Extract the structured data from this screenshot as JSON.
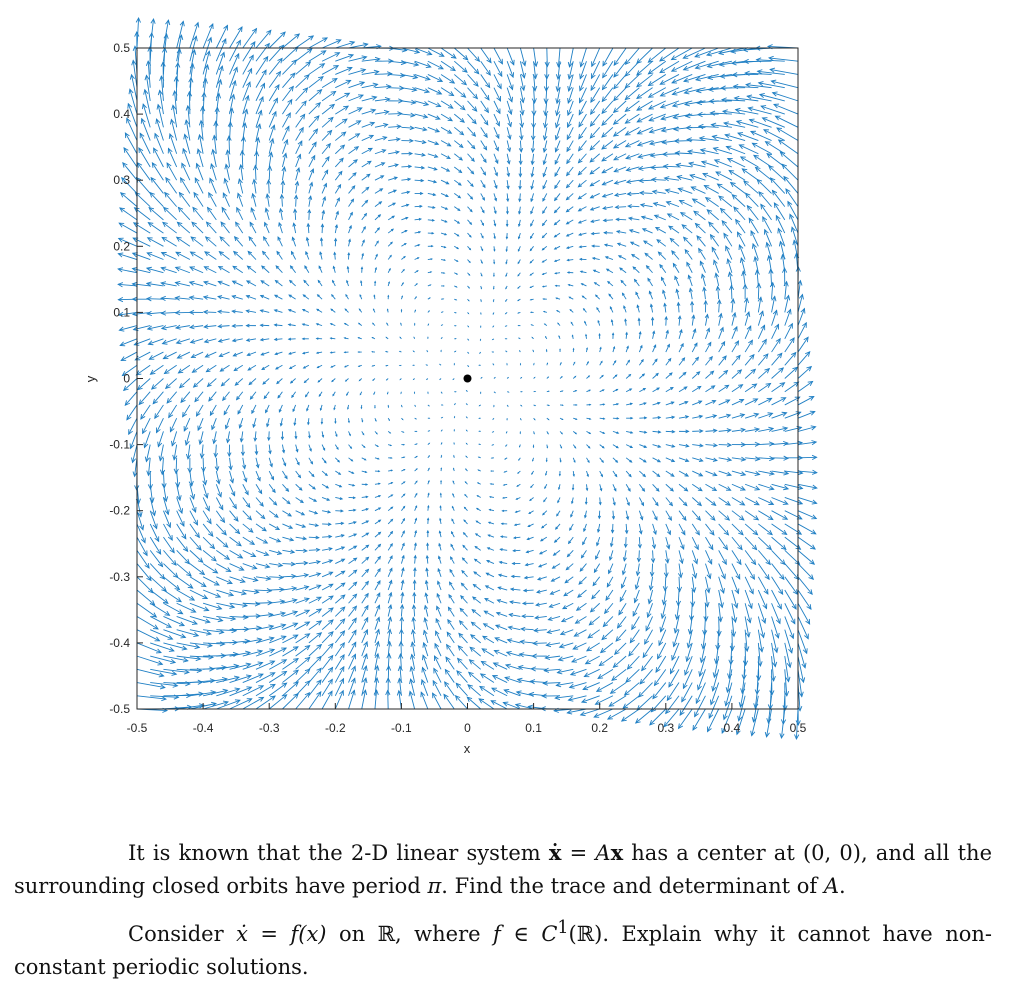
{
  "chart_data": {
    "type": "quiver",
    "xlabel": "x",
    "ylabel": "y",
    "xlim": [
      -0.5,
      0.5
    ],
    "ylim": [
      -0.5,
      0.5
    ],
    "x_ticks": [
      -0.5,
      -0.4,
      -0.3,
      -0.2,
      -0.1,
      0,
      0.1,
      0.2,
      0.3,
      0.4,
      0.5
    ],
    "y_ticks": [
      -0.5,
      -0.4,
      -0.3,
      -0.2,
      -0.1,
      0,
      0.1,
      0.2,
      0.3,
      0.4,
      0.5
    ],
    "x_tick_labels": [
      "-0.5",
      "-0.4",
      "-0.3",
      "-0.2",
      "-0.1",
      "0",
      "0.1",
      "0.2",
      "0.3",
      "0.4",
      "0.5"
    ],
    "y_tick_labels": [
      "-0.5",
      "-0.4",
      "-0.3",
      "-0.2",
      "-0.1",
      "0",
      "0.1",
      "0.2",
      "0.3",
      "0.4",
      "0.5"
    ],
    "grid": false,
    "grid_spacing": 0.02,
    "arrow_color": "#1f7fc4",
    "equilibrium_point": [
      0,
      0
    ],
    "equilibrium_color": "#000000"
  },
  "text": {
    "p1_a": "It is known that the 2-D linear system ",
    "p1_xdot": "ẋ",
    "p1_eq": " = ",
    "p1_A": "A",
    "p1_x": "x",
    "p1_b": " has a center at ",
    "p1_pt": "(0, 0)",
    "p1_c": ", and all the surrounding closed orbits have period ",
    "p1_pi": "π",
    "p1_d": ". Find the trace and determinant of ",
    "p1_A2": "A",
    "p1_e": ".",
    "p2_a": "Consider ",
    "p2_xdot": "ẋ",
    "p2_eq": " = ",
    "p2_fx": "f(x)",
    "p2_on": " on ",
    "p2_R": "ℝ",
    "p2_where": ", where ",
    "p2_f": "f",
    "p2_in": " ∈ ",
    "p2_C": "C",
    "p2_sup": "1",
    "p2_CR": "(ℝ)",
    "p2_rest": ". Explain why it cannot have non-constant periodic solutions."
  }
}
